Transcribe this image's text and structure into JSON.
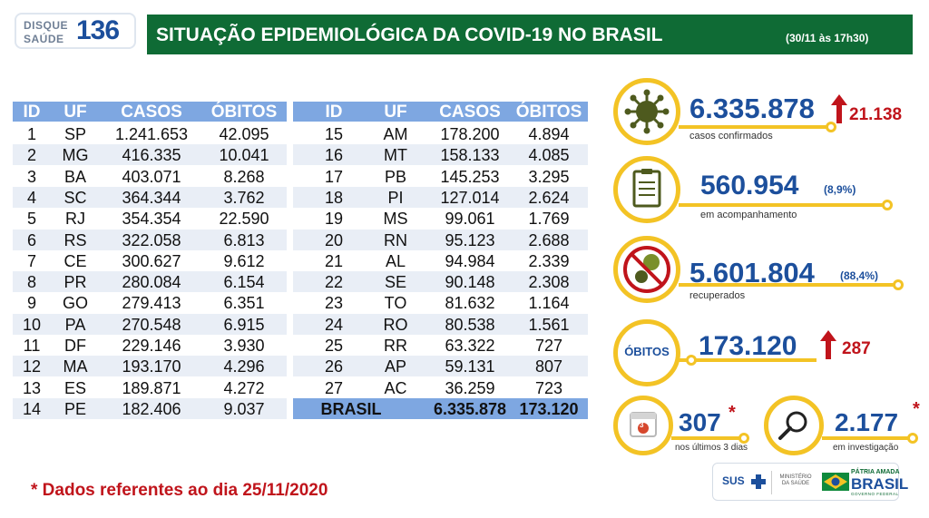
{
  "logo": {
    "line1": "DISQUE",
    "line2": "SAÚDE",
    "number": "136"
  },
  "header": {
    "title": "SITUAÇÃO EPIDEMIOLÓGICA DA COVID-19 NO BRASIL",
    "date": "(30/11 às 17h30)"
  },
  "table_headers": [
    "ID",
    "UF",
    "CASOS",
    "ÓBITOS"
  ],
  "table_left": [
    [
      "1",
      "SP",
      "1.241.653",
      "42.095"
    ],
    [
      "2",
      "MG",
      "416.335",
      "10.041"
    ],
    [
      "3",
      "BA",
      "403.071",
      "8.268"
    ],
    [
      "4",
      "SC",
      "364.344",
      "3.762"
    ],
    [
      "5",
      "RJ",
      "354.354",
      "22.590"
    ],
    [
      "6",
      "RS",
      "322.058",
      "6.813"
    ],
    [
      "7",
      "CE",
      "300.627",
      "9.612"
    ],
    [
      "8",
      "PR",
      "280.084",
      "6.154"
    ],
    [
      "9",
      "GO",
      "279.413",
      "6.351"
    ],
    [
      "10",
      "PA",
      "270.548",
      "6.915"
    ],
    [
      "11",
      "DF",
      "229.146",
      "3.930"
    ],
    [
      "12",
      "MA",
      "193.170",
      "4.296"
    ],
    [
      "13",
      "ES",
      "189.871",
      "4.272"
    ],
    [
      "14",
      "PE",
      "182.406",
      "9.037"
    ]
  ],
  "table_right": [
    [
      "15",
      "AM",
      "178.200",
      "4.894"
    ],
    [
      "16",
      "MT",
      "158.133",
      "4.085"
    ],
    [
      "17",
      "PB",
      "145.253",
      "3.295"
    ],
    [
      "18",
      "PI",
      "127.014",
      "2.624"
    ],
    [
      "19",
      "MS",
      "99.061",
      "1.769"
    ],
    [
      "20",
      "RN",
      "95.123",
      "2.688"
    ],
    [
      "21",
      "AL",
      "94.984",
      "2.339"
    ],
    [
      "22",
      "SE",
      "90.148",
      "2.308"
    ],
    [
      "23",
      "TO",
      "81.632",
      "1.164"
    ],
    [
      "24",
      "RO",
      "80.538",
      "1.561"
    ],
    [
      "25",
      "RR",
      "63.322",
      "727"
    ],
    [
      "26",
      "AP",
      "59.131",
      "807"
    ],
    [
      "27",
      "AC",
      "36.259",
      "723"
    ]
  ],
  "table_total": [
    "BRASIL",
    "6.335.878",
    "173.120"
  ],
  "stats": {
    "confirmed": {
      "value": "6.335.878",
      "increase": "21.138",
      "label": "casos confirmados",
      "icon": "virus-icon"
    },
    "monitoring": {
      "value": "560.954",
      "pct": "(8,9%)",
      "label": "em acompanhamento",
      "icon": "clipboard-icon"
    },
    "recovered": {
      "value": "5.601.804",
      "pct": "(88,4%)",
      "label": "recuperados",
      "icon": "no-virus-icon"
    },
    "deaths": {
      "ring_label": "ÓBITOS",
      "value": "173.120",
      "increase": "287"
    },
    "last3days": {
      "value": "307",
      "star": "*",
      "label": "nos últimos 3 dias",
      "icon": "calendar-icon",
      "calendar_num": "3"
    },
    "investigation": {
      "value": "2.177",
      "star": "*",
      "label": "em investigação",
      "icon": "magnifier-icon"
    }
  },
  "footnote": "* Dados referentes ao dia 25/11/2020",
  "footer_logos": {
    "sus": "SUS",
    "ministerio": "MINISTÉRIO DA SAÚDE",
    "patria": "PÁTRIA AMADA",
    "brasil": "BRASIL",
    "governo": "GOVERNO FEDERAL"
  },
  "colors": {
    "green": "#0f6b35",
    "blue": "#1c4f9c",
    "header_blue": "#7ea7e1",
    "yellow": "#f3c325",
    "red": "#c0141b"
  }
}
